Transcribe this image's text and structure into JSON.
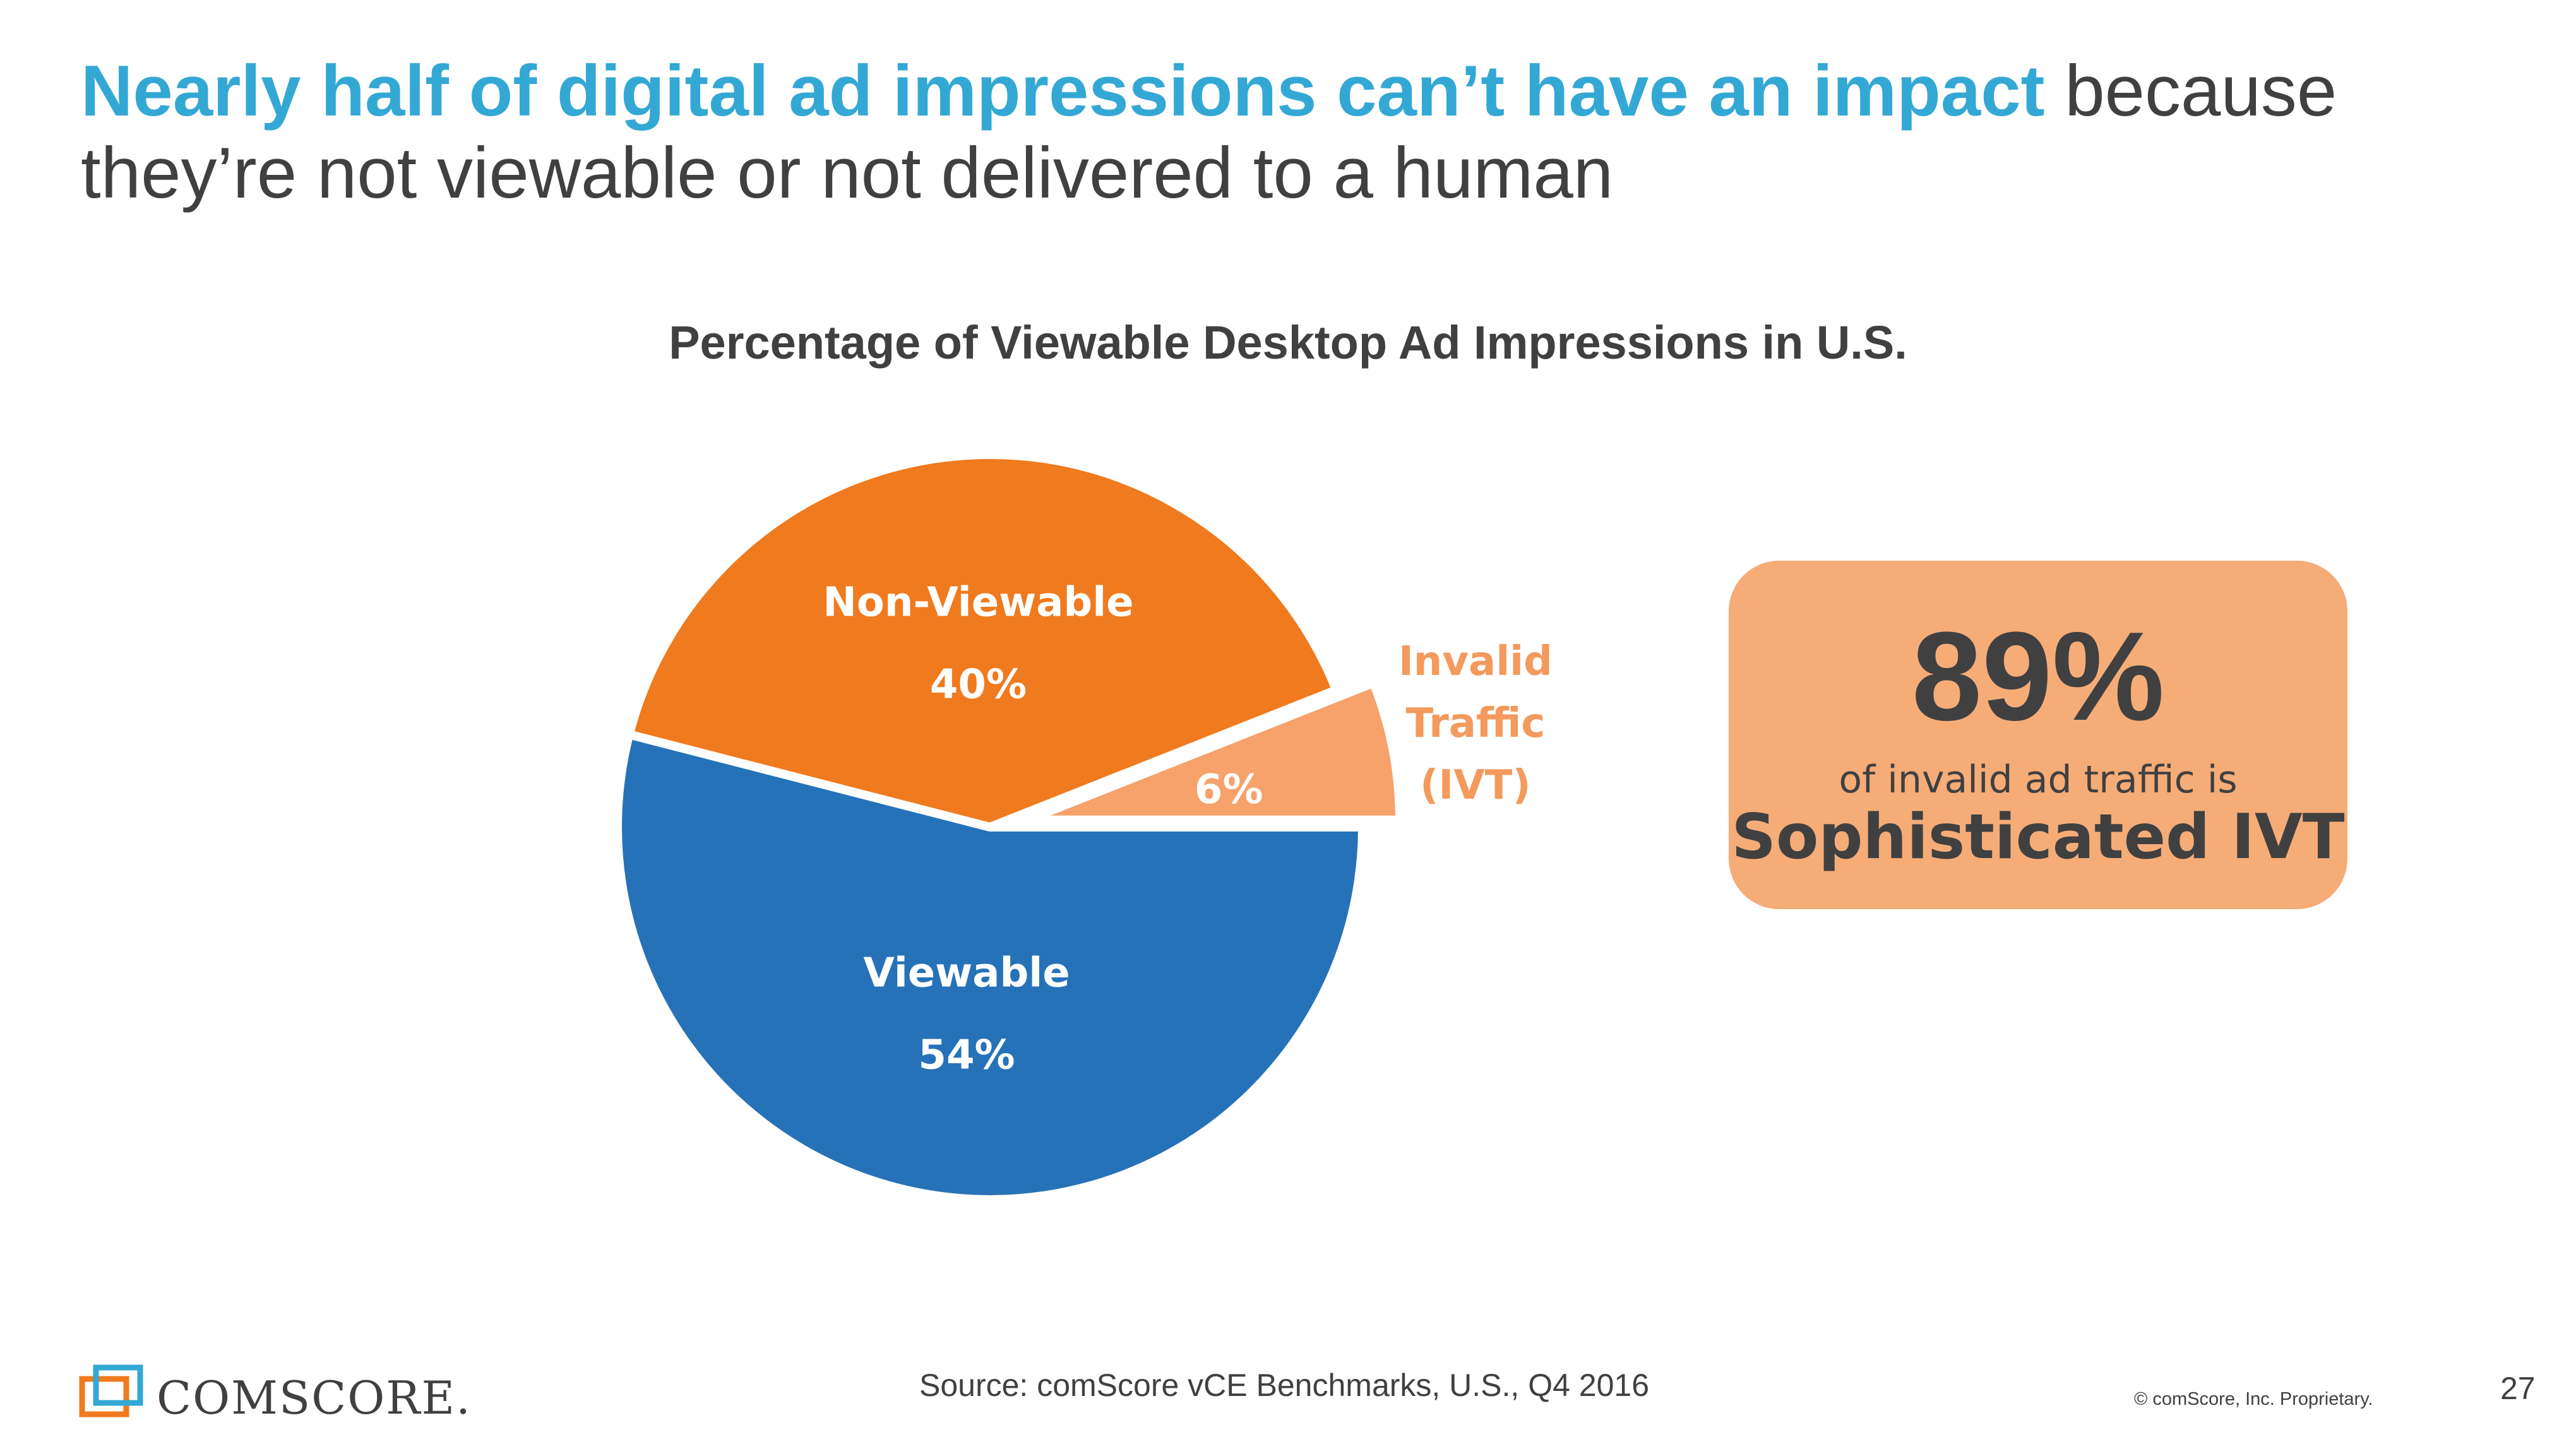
{
  "headline": {
    "lead": "Nearly half of digital ad impressions can’t have an impact",
    "rest": " because they’re not viewable or not delivered to a human"
  },
  "chart_data": {
    "type": "pie",
    "title": "Percentage of Viewable Desktop Ad Impressions in U.S.",
    "slices": [
      {
        "name": "Viewable",
        "value": 54,
        "label": "54%",
        "color": "#2672b8",
        "text_color": "#ffffff",
        "exploded": false
      },
      {
        "name": "Non-Viewable",
        "value": 40,
        "label": "40%",
        "color": "#f07a1e",
        "text_color": "#ffffff",
        "exploded": false
      },
      {
        "name": "Invalid Traffic (IVT)",
        "name_lines": [
          "Invalid",
          "Traffic",
          "(IVT)"
        ],
        "value": 6,
        "label": "6%",
        "color": "#f6a26a",
        "text_color": "#ffffff",
        "name_color": "#f39a5c",
        "exploded": true
      }
    ]
  },
  "callout": {
    "big_value": "89%",
    "text": "of invalid ad traffic is",
    "emphasis": "Sophisticated IVT",
    "color": "#f6ac77"
  },
  "footer": {
    "brand": "comScore",
    "brand_display": "COMSCORE.",
    "source": "Source: comScore vCE Benchmarks, U.S., Q4 2016",
    "copyright": "© comScore, Inc. Proprietary.",
    "page_number": "27"
  }
}
